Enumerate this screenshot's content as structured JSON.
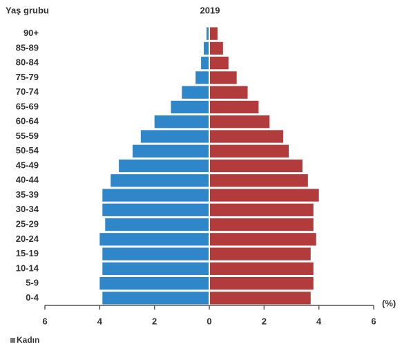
{
  "chart_data": {
    "type": "population-pyramid",
    "title": "2019",
    "y_label": "Yaş grubu",
    "x_label": "(%)",
    "categories": [
      "90+",
      "85-89",
      "80-84",
      "75-79",
      "70-74",
      "65-69",
      "60-64",
      "55-59",
      "50-54",
      "45-49",
      "40-44",
      "35-39",
      "30-34",
      "25-29",
      "20-24",
      "15-19",
      "10-14",
      "5-9",
      "0-4"
    ],
    "series": [
      {
        "color": "#2f87c9",
        "values": [
          -0.1,
          -0.2,
          -0.3,
          -0.5,
          -1.0,
          -1.4,
          -2.0,
          -2.5,
          -2.8,
          -3.3,
          -3.6,
          -3.9,
          -3.9,
          -3.8,
          -4.0,
          -3.9,
          -3.9,
          -4.0,
          -3.9
        ]
      },
      {
        "name": "Kadın",
        "color": "#b23b3b",
        "values": [
          0.3,
          0.5,
          0.7,
          1.0,
          1.4,
          1.8,
          2.2,
          2.7,
          2.9,
          3.4,
          3.6,
          4.0,
          3.8,
          3.8,
          3.9,
          3.7,
          3.8,
          3.8,
          3.7
        ]
      }
    ],
    "xlim": [
      -6,
      6
    ],
    "xticks": [
      {
        "value": -6,
        "label": "6"
      },
      {
        "value": -4,
        "label": "4"
      },
      {
        "value": -2,
        "label": "2"
      },
      0,
      2,
      4,
      6
    ],
    "legend": "bottom-left"
  }
}
